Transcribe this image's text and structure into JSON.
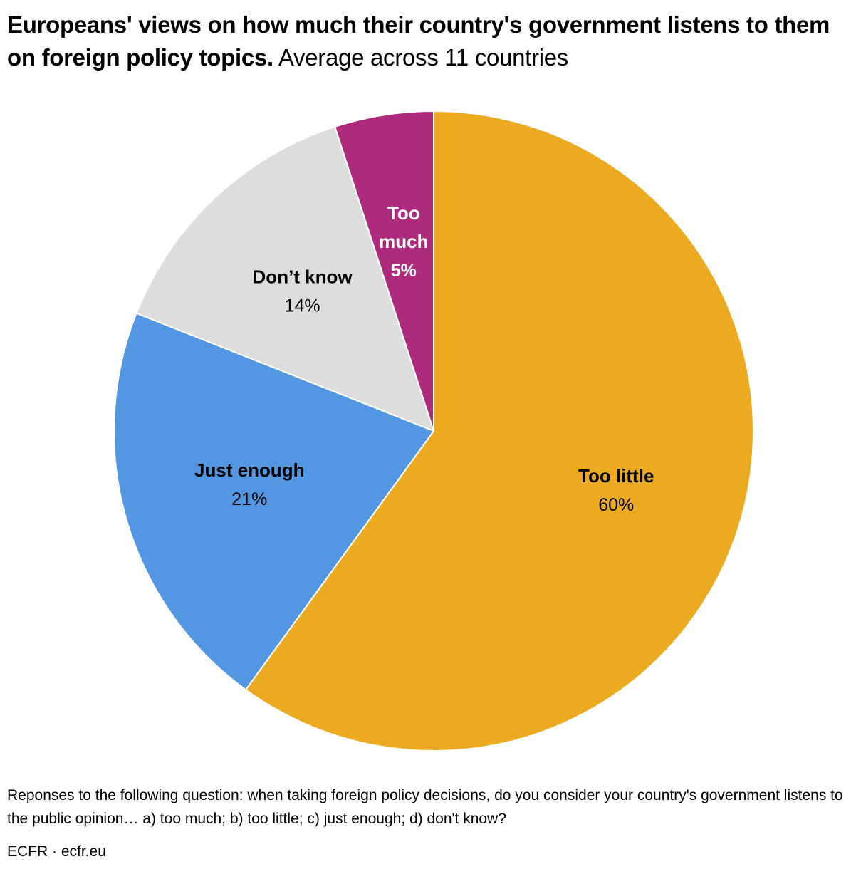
{
  "chart_data": {
    "type": "pie",
    "title": "Europeans' views on how much their country's government listens to them on foreign policy topics.",
    "subtitle": "Average across 11 countries",
    "slices": [
      {
        "label": "Too little",
        "value": 60,
        "value_label": "60%",
        "color": "#ECAA20",
        "text_color": "#000000"
      },
      {
        "label": "Just enough",
        "value": 21,
        "value_label": "21%",
        "color": "#5397E2",
        "text_color": "#000000"
      },
      {
        "label": "Don’t know",
        "value": 14,
        "value_label": "14%",
        "color": "#DDDDDD",
        "text_color": "#000000"
      },
      {
        "label": "Too much",
        "value": 5,
        "value_label": "5%",
        "color": "#AD2A7D",
        "text_color": "#FFFFFF"
      }
    ],
    "start": "top",
    "direction": "clockwise"
  },
  "footer": {
    "note": "Reponses to the following question: when taking foreign policy decisions, do you consider your country's government listens to the public opinion… a) too much; b) too little; c) just enough; d) don't know?",
    "source": "ECFR · ecfr.eu"
  }
}
